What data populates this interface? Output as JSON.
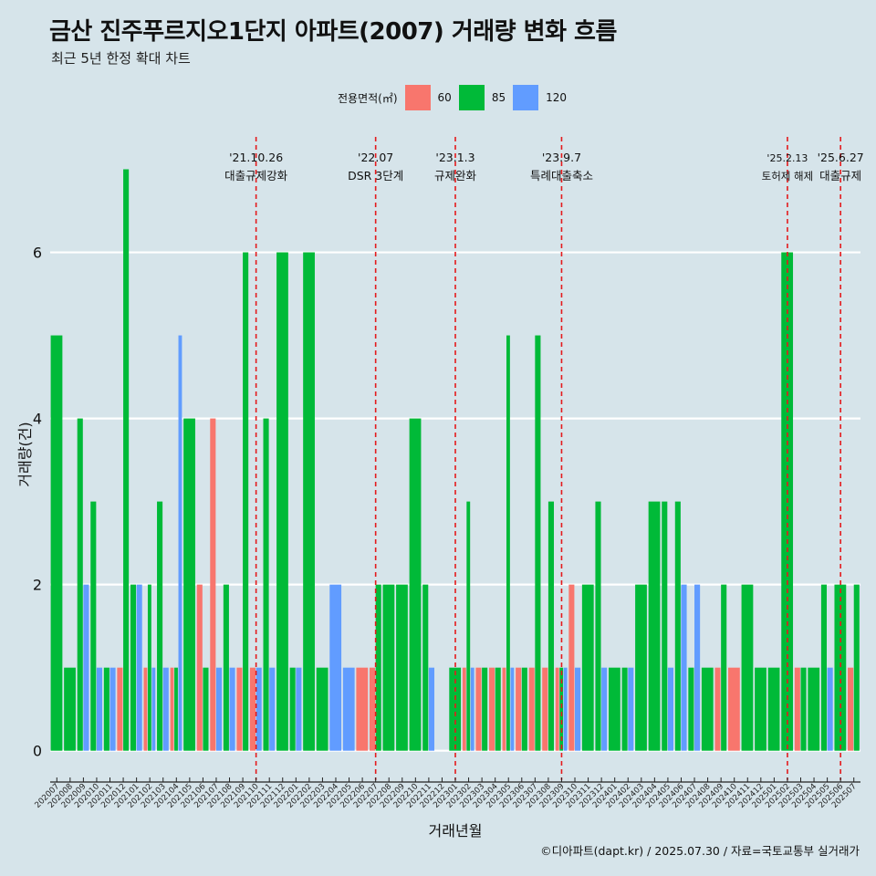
{
  "title": "금산 진주푸르지오1단지 아파트(2007) 거래량 변화 흐름",
  "subtitle": "최근 5년 한정 확대 차트",
  "caption": "©디아파트(dapt.kr) / 2025.07.30 / 자료=국토교통부 실거래가",
  "legend": {
    "title": "전용면적(㎡)",
    "items": [
      {
        "label": "60",
        "color": "#f8766d"
      },
      {
        "label": "85",
        "color": "#00ba38"
      },
      {
        "label": "120",
        "color": "#619cff"
      }
    ]
  },
  "chart_data": {
    "type": "bar",
    "xlabel": "거래년월",
    "ylabel": "거래량(건)",
    "ylim": [
      -0.3,
      7.5
    ],
    "yticks": [
      0,
      2,
      4,
      6
    ],
    "grid": true,
    "legend_position": "top",
    "categories": [
      "202007",
      "202008",
      "202009",
      "202010",
      "202011",
      "202012",
      "202101",
      "202102",
      "202103",
      "202104",
      "202105",
      "202106",
      "202107",
      "202108",
      "202109",
      "202110",
      "202111",
      "202112",
      "202201",
      "202202",
      "202203",
      "202204",
      "202205",
      "202206",
      "202207",
      "202208",
      "202209",
      "202210",
      "202211",
      "202212",
      "202301",
      "202302",
      "202303",
      "202304",
      "202305",
      "202306",
      "202307",
      "202308",
      "202309",
      "202310",
      "202311",
      "202312",
      "202401",
      "202402",
      "202403",
      "202404",
      "202405",
      "202406",
      "202407",
      "202408",
      "202409",
      "202410",
      "202411",
      "202412",
      "202501",
      "202502",
      "202503",
      "202504",
      "202505",
      "202506",
      "202507"
    ],
    "series": [
      {
        "name": "60",
        "color": "#f8766d",
        "values": [
          0,
          0,
          0,
          0,
          0,
          1,
          0,
          1,
          0,
          1,
          0,
          2,
          4,
          0,
          1,
          1,
          0,
          0,
          0,
          0,
          0,
          0,
          0,
          1,
          1,
          0,
          0,
          0,
          0,
          0,
          0,
          1,
          1,
          1,
          1,
          1,
          1,
          1,
          1,
          2,
          0,
          0,
          0,
          0,
          0,
          0,
          0,
          0,
          0,
          0,
          1,
          1,
          0,
          0,
          0,
          0,
          1,
          0,
          0,
          0,
          1
        ]
      },
      {
        "name": "85",
        "color": "#00ba38",
        "values": [
          5,
          1,
          4,
          3,
          1,
          7,
          2,
          2,
          3,
          1,
          4,
          1,
          0,
          2,
          6,
          0,
          4,
          6,
          1,
          6,
          1,
          0,
          0,
          0,
          2,
          2,
          2,
          4,
          2,
          0,
          1,
          3,
          1,
          1,
          5,
          1,
          5,
          3,
          1,
          0,
          2,
          3,
          1,
          1,
          2,
          3,
          3,
          3,
          1,
          1,
          2,
          0,
          2,
          1,
          1,
          6,
          1,
          1,
          2,
          2,
          2
        ]
      },
      {
        "name": "120",
        "color": "#619cff",
        "values": [
          0,
          0,
          2,
          1,
          1,
          0,
          2,
          1,
          1,
          5,
          0,
          0,
          1,
          1,
          0,
          1,
          1,
          0,
          1,
          0,
          0,
          2,
          1,
          0,
          0,
          0,
          0,
          0,
          1,
          0,
          0,
          1,
          0,
          0,
          1,
          0,
          0,
          0,
          1,
          1,
          0,
          1,
          0,
          1,
          0,
          0,
          1,
          2,
          2,
          0,
          0,
          0,
          0,
          0,
          0,
          0,
          0,
          0,
          1,
          0,
          0
        ]
      }
    ],
    "annotations": [
      {
        "label_date": "'21.10.26",
        "label_text": "대출규제강화",
        "month": "202110"
      },
      {
        "label_date": "'22.07",
        "label_text": "DSR 3단계",
        "month": "202207"
      },
      {
        "label_date": "'23.1.3",
        "label_text": "규제완화",
        "month": "202301"
      },
      {
        "label_date": "'23.9.7",
        "label_text": "특례대출축소",
        "month": "202309"
      },
      {
        "label_date": "'25.2.13",
        "label_text": "토허제 해제",
        "month": "202502"
      },
      {
        "label_date": "'25.6.27",
        "label_text": "대출규제",
        "month": "202506"
      }
    ],
    "annotation_color": "#e41a1c"
  }
}
